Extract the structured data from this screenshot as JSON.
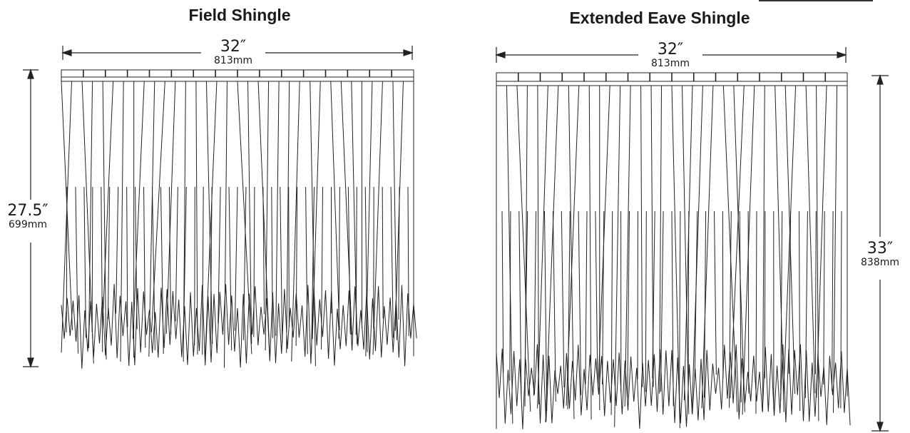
{
  "left": {
    "title": "Field Shingle",
    "width_in": "32″",
    "width_mm": "813mm",
    "height_in": "27.5″",
    "height_mm": "699mm"
  },
  "right": {
    "title": "Extended Eave Shingle",
    "width_in": "32″",
    "width_mm": "813mm",
    "height_in": "33″",
    "height_mm": "838mm"
  },
  "colors": {
    "line": "#222222",
    "text": "#1a1a1a"
  }
}
